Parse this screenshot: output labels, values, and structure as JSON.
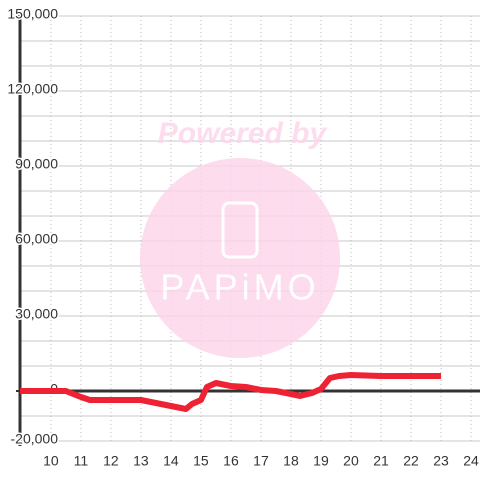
{
  "chart_data": {
    "type": "line",
    "watermark": {
      "title": "Powered by",
      "brand": "PAPiMO"
    },
    "xlim": [
      8.97,
      24.3
    ],
    "xticks": [
      10,
      11,
      12,
      13,
      14,
      15,
      16,
      17,
      18,
      19,
      20,
      21,
      22,
      23,
      24
    ],
    "ylim": [
      -20000,
      150000
    ],
    "yticks": [
      {
        "value": -20000,
        "label": "-20,000"
      },
      0,
      {
        "value": 30000,
        "label": "30,000"
      },
      {
        "value": 60000,
        "label": "60,000"
      },
      {
        "value": 90000,
        "label": "90,000"
      },
      {
        "value": 120000,
        "label": "120,000"
      },
      {
        "value": 150000,
        "label": "150,000"
      }
    ],
    "ygrid": [
      -20000,
      -10000,
      0,
      10000,
      20000,
      30000,
      40000,
      50000,
      60000,
      70000,
      80000,
      90000,
      100000,
      110000,
      120000,
      130000,
      140000,
      150000
    ],
    "grid": true,
    "x": [
      8.97,
      10.5,
      11,
      11.3,
      12,
      13,
      13.5,
      14,
      14.5,
      14.7,
      15,
      15.2,
      15.5,
      16,
      16.5,
      17,
      17.5,
      18,
      18.3,
      18.7,
      19,
      19.3,
      19.6,
      20,
      21,
      22,
      23
    ],
    "series": [
      {
        "color": "#ee2233",
        "values": [
          0,
          0,
          -2400,
          -3600,
          -3600,
          -3600,
          -4800,
          -6000,
          -7200,
          -5200,
          -3600,
          1600,
          3200,
          2000,
          1600,
          400,
          0,
          -1200,
          -2000,
          -800,
          800,
          5200,
          6000,
          6400,
          6000,
          6000,
          6000
        ]
      }
    ]
  }
}
